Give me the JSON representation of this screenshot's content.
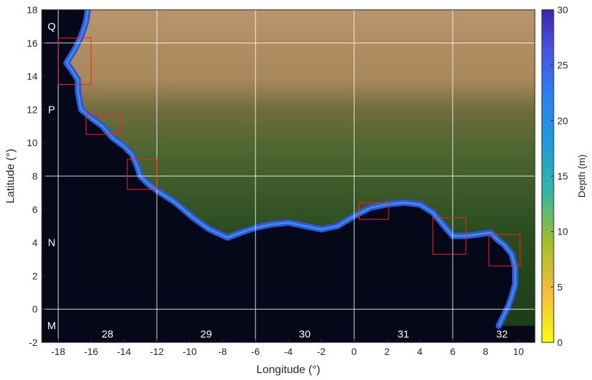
{
  "map": {
    "x_axis": {
      "label": "Longitude (°)",
      "range": [
        -19,
        11
      ],
      "ticks": [
        -18,
        -16,
        -14,
        -12,
        -10,
        -8,
        -6,
        -4,
        -2,
        0,
        2,
        4,
        6,
        8,
        10
      ],
      "tick_labels": [
        "-18",
        "-16",
        "-14",
        "-12",
        "-10",
        "-8",
        "-6",
        "-4",
        "-2",
        "0",
        "2",
        "4",
        "6",
        "8",
        "10"
      ]
    },
    "y_axis": {
      "label": "Latitude (°)",
      "range": [
        -2,
        18
      ],
      "ticks": [
        -2,
        0,
        2,
        4,
        6,
        8,
        10,
        12,
        14,
        16,
        18
      ],
      "tick_labels": [
        "-2",
        "0",
        "2",
        "4",
        "6",
        "8",
        "10",
        "12",
        "14",
        "16",
        "18"
      ]
    },
    "grid_lines": {
      "longitudes": [
        -18,
        -12,
        -6,
        0,
        6
      ],
      "latitudes": [
        0,
        8,
        16
      ]
    },
    "zone_columns": [
      {
        "label": "28",
        "center_lon": -15
      },
      {
        "label": "29",
        "center_lon": -9
      },
      {
        "label": "30",
        "center_lon": -3
      },
      {
        "label": "31",
        "center_lon": 3
      },
      {
        "label": "32",
        "center_lon": 9
      }
    ],
    "zone_rows": [
      {
        "label": "Q",
        "center_lat": 17
      },
      {
        "label": "P",
        "center_lat": 12
      },
      {
        "label": "N",
        "center_lat": 4
      },
      {
        "label": "M",
        "center_lat": -1
      }
    ],
    "study_boxes_lonlat": [
      {
        "lon": [
          -18.0,
          -16.0
        ],
        "lat": [
          13.5,
          16.3
        ]
      },
      {
        "lon": [
          -16.3,
          -14.2
        ],
        "lat": [
          10.5,
          11.7
        ]
      },
      {
        "lon": [
          -13.8,
          -12.0
        ],
        "lat": [
          7.2,
          9.0
        ]
      },
      {
        "lon": [
          0.3,
          2.1
        ],
        "lat": [
          5.4,
          6.4
        ]
      },
      {
        "lon": [
          4.8,
          6.8
        ],
        "lat": [
          3.3,
          5.5
        ]
      },
      {
        "lon": [
          8.2,
          10.1
        ],
        "lat": [
          2.6,
          4.5
        ]
      }
    ],
    "coastline_lonlat": [
      [
        -16.2,
        18.0
      ],
      [
        -16.3,
        17.3
      ],
      [
        -16.6,
        16.4
      ],
      [
        -17.0,
        15.6
      ],
      [
        -17.5,
        14.8
      ],
      [
        -17.2,
        14.4
      ],
      [
        -16.8,
        13.8
      ],
      [
        -16.8,
        13.1
      ],
      [
        -16.7,
        12.5
      ],
      [
        -16.6,
        12.0
      ],
      [
        -16.0,
        11.5
      ],
      [
        -15.3,
        11.0
      ],
      [
        -14.7,
        10.3
      ],
      [
        -14.0,
        9.8
      ],
      [
        -13.5,
        9.3
      ],
      [
        -13.2,
        8.6
      ],
      [
        -13.0,
        8.0
      ],
      [
        -12.5,
        7.5
      ],
      [
        -11.8,
        7.0
      ],
      [
        -11.0,
        6.5
      ],
      [
        -10.5,
        6.1
      ],
      [
        -9.8,
        5.5
      ],
      [
        -8.8,
        4.8
      ],
      [
        -7.7,
        4.3
      ],
      [
        -6.9,
        4.6
      ],
      [
        -6.0,
        4.9
      ],
      [
        -5.0,
        5.1
      ],
      [
        -4.0,
        5.2
      ],
      [
        -3.0,
        5.0
      ],
      [
        -2.0,
        4.8
      ],
      [
        -1.0,
        5.0
      ],
      [
        0.0,
        5.6
      ],
      [
        1.0,
        6.1
      ],
      [
        2.0,
        6.3
      ],
      [
        3.0,
        6.4
      ],
      [
        4.0,
        6.3
      ],
      [
        4.8,
        5.8
      ],
      [
        5.4,
        5.1
      ],
      [
        6.0,
        4.4
      ],
      [
        6.8,
        4.4
      ],
      [
        7.6,
        4.5
      ],
      [
        8.3,
        4.6
      ],
      [
        8.7,
        4.2
      ],
      [
        9.1,
        3.9
      ],
      [
        9.6,
        3.3
      ],
      [
        9.8,
        2.5
      ],
      [
        9.8,
        1.5
      ],
      [
        9.6,
        0.8
      ],
      [
        9.4,
        0.2
      ],
      [
        9.0,
        -0.6
      ],
      [
        8.8,
        -1.0
      ]
    ],
    "colors": {
      "ocean": "#050818",
      "sahara": "#b48e5c",
      "sahel": "#8a7a4a",
      "savanna": "#526a33",
      "forest": "#22451c",
      "box_stroke": "#ff2020",
      "grid": "#ffffff"
    }
  },
  "colorbar": {
    "label": "Depth (m)",
    "range": [
      0,
      30
    ],
    "ticks": [
      0,
      5,
      10,
      15,
      20,
      25,
      30
    ],
    "tick_labels": [
      "0",
      "5",
      "10",
      "15",
      "20",
      "25",
      "30"
    ],
    "colormap": "parula"
  }
}
